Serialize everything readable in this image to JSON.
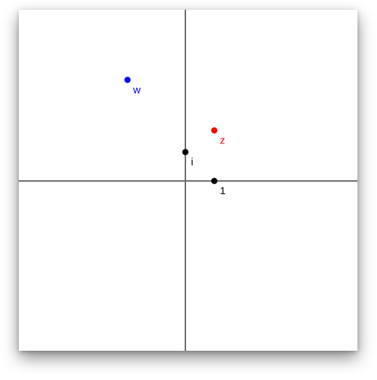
{
  "points": [
    {
      "id": "w",
      "label": "w",
      "re": -2.0,
      "im": 3.5,
      "color": "#0000ff"
    },
    {
      "id": "z",
      "label": "z",
      "re": 1.0,
      "im": 1.75,
      "color": "#ff0000"
    },
    {
      "id": "i",
      "label": "i",
      "re": 0.0,
      "im": 1.0,
      "color": "#000000"
    },
    {
      "id": "one",
      "label": "1",
      "re": 1.0,
      "im": 0.0,
      "color": "#000000"
    }
  ],
  "axes": {
    "re_range": [
      -5.75,
      5.95
    ],
    "im_range": [
      -6.0,
      5.85
    ],
    "color": "#666666"
  }
}
